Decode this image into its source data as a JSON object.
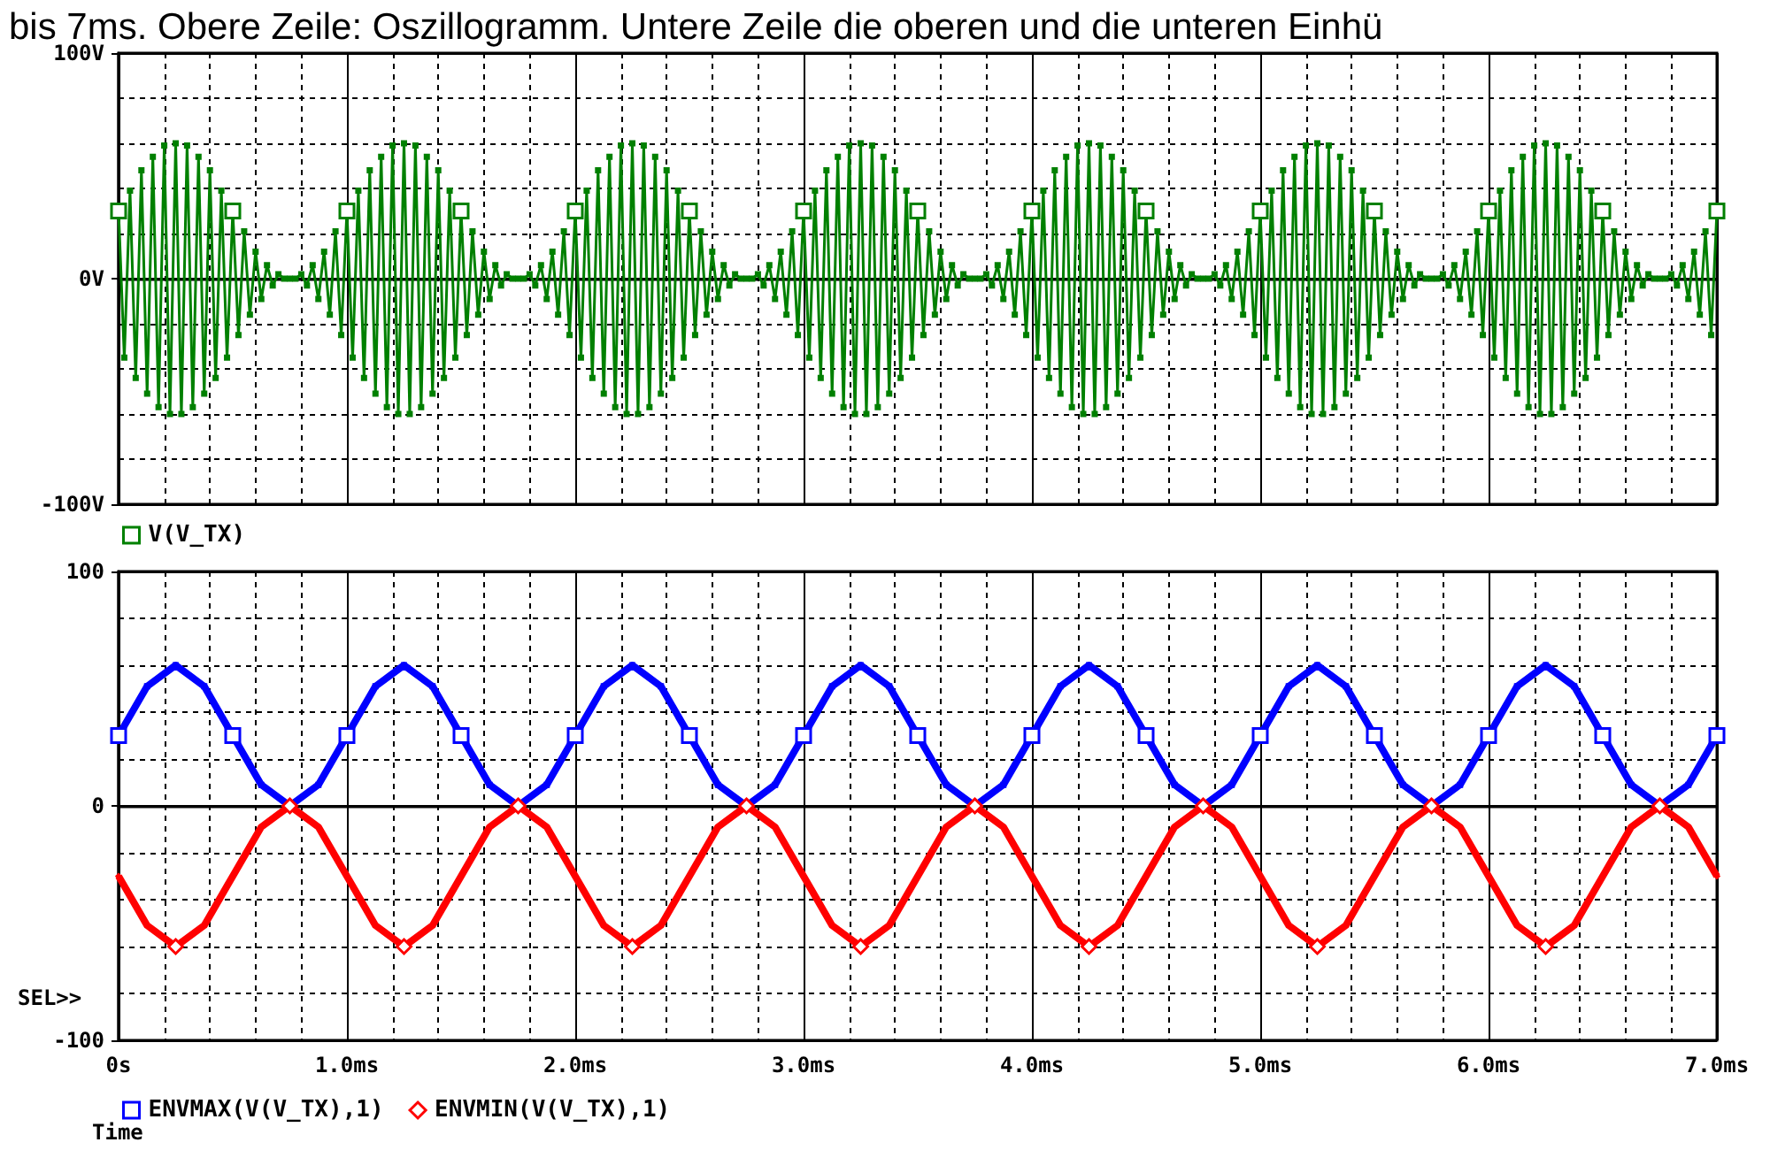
{
  "chart_data": [
    {
      "type": "line",
      "title": "bis 7ms. Obere Zeile: Oszillogramm. Untere Zeile die oberen und die unteren Einhü",
      "xlim": [
        0,
        7
      ],
      "xticks": [
        0,
        1,
        2,
        3,
        4,
        5,
        6,
        7
      ],
      "tick_labels": "y",
      "ylim": [
        -100,
        100
      ],
      "yticks": [
        {
          "value": -100,
          "label": "-100V"
        },
        {
          "value": 0,
          "label": "0V"
        },
        {
          "value": 100,
          "label": "100V"
        }
      ],
      "grid": true,
      "legend": "bottom left",
      "marker": "square",
      "series": [
        {
          "name": "V(V_TX)",
          "color": "#008000",
          "x": [
            0,
            0.025,
            0.05,
            0.075,
            0.1,
            0.125,
            0.15,
            0.175,
            0.2,
            0.225,
            0.25,
            0.275,
            0.3,
            0.325,
            0.35,
            0.375,
            0.4,
            0.425,
            0.45,
            0.475,
            0.5,
            0.525,
            0.55,
            0.575,
            0.6,
            0.625,
            0.65,
            0.675,
            0.7,
            0.725,
            0.75,
            0.775,
            0.8,
            0.825,
            0.85,
            0.875,
            0.9,
            0.925,
            0.95,
            0.975,
            1,
            1.025,
            1.05,
            1.075,
            1.1,
            1.125,
            1.15,
            1.175,
            1.2,
            1.225,
            1.25,
            1.275,
            1.3,
            1.325,
            1.35,
            1.375,
            1.4,
            1.425,
            1.45,
            1.475,
            1.5,
            1.525,
            1.55,
            1.575,
            1.6,
            1.625,
            1.65,
            1.675,
            1.7,
            1.725,
            1.75,
            1.775,
            1.8,
            1.825,
            1.85,
            1.875,
            1.9,
            1.925,
            1.95,
            1.975,
            2,
            2.025,
            2.05,
            2.075,
            2.1,
            2.125,
            2.15,
            2.175,
            2.2,
            2.225,
            2.25,
            2.275,
            2.3,
            2.325,
            2.35,
            2.375,
            2.4,
            2.425,
            2.45,
            2.475,
            2.5,
            2.525,
            2.55,
            2.575,
            2.6,
            2.625,
            2.65,
            2.675,
            2.7,
            2.725,
            2.75,
            2.775,
            2.8,
            2.825,
            2.85,
            2.875,
            2.9,
            2.925,
            2.95,
            2.975,
            3,
            3.025,
            3.05,
            3.075,
            3.1,
            3.125,
            3.15,
            3.175,
            3.2,
            3.225,
            3.25,
            3.275,
            3.3,
            3.325,
            3.35,
            3.375,
            3.4,
            3.425,
            3.45,
            3.475,
            3.5,
            3.525,
            3.55,
            3.575,
            3.6,
            3.625,
            3.65,
            3.675,
            3.7,
            3.725,
            3.75,
            3.775,
            3.8,
            3.825,
            3.85,
            3.875,
            3.9,
            3.925,
            3.95,
            3.975,
            4,
            4.025,
            4.05,
            4.075,
            4.1,
            4.125,
            4.15,
            4.175,
            4.2,
            4.225,
            4.25,
            4.275,
            4.3,
            4.325,
            4.35,
            4.375,
            4.4,
            4.425,
            4.45,
            4.475,
            4.5,
            4.525,
            4.55,
            4.575,
            4.6,
            4.625,
            4.65,
            4.675,
            4.7,
            4.725,
            4.75,
            4.775,
            4.8,
            4.825,
            4.85,
            4.875,
            4.9,
            4.925,
            4.95,
            4.975,
            5,
            5.025,
            5.05,
            5.075,
            5.1,
            5.125,
            5.15,
            5.175,
            5.2,
            5.225,
            5.25,
            5.275,
            5.3,
            5.325,
            5.35,
            5.375,
            5.4,
            5.425,
            5.45,
            5.475,
            5.5,
            5.525,
            5.55,
            5.575,
            5.6,
            5.625,
            5.65,
            5.675,
            5.7,
            5.725,
            5.75,
            5.775,
            5.8,
            5.825,
            5.85,
            5.875,
            5.9,
            5.925,
            5.95,
            5.975,
            6,
            6.025,
            6.05,
            6.075,
            6.1,
            6.125,
            6.15,
            6.175,
            6.2,
            6.225,
            6.25,
            6.275,
            6.3,
            6.325,
            6.35,
            6.375,
            6.4,
            6.425,
            6.45,
            6.475,
            6.5,
            6.525,
            6.55,
            6.575,
            6.6,
            6.625,
            6.65,
            6.675,
            6.7,
            6.725,
            6.75,
            6.775,
            6.8,
            6.825,
            6.85,
            6.875,
            6.9,
            6.925,
            6.95,
            6.975,
            7
          ],
          "values": [
            30,
            -35,
            39,
            -44,
            48,
            -51,
            54,
            -57,
            59,
            -60,
            60,
            -60,
            59,
            -57,
            54,
            -51,
            48,
            -44,
            39,
            -35,
            30,
            -25,
            21,
            -16,
            12,
            -9,
            6,
            -3,
            2,
            0,
            0,
            0,
            2,
            -3,
            6,
            -9,
            12,
            -16,
            21,
            -25,
            30,
            -35,
            39,
            -44,
            48,
            -51,
            54,
            -57,
            59,
            -60,
            60,
            -60,
            59,
            -57,
            54,
            -51,
            48,
            -44,
            39,
            -35,
            30,
            -25,
            21,
            -16,
            12,
            -9,
            6,
            -3,
            2,
            0,
            0,
            0,
            2,
            -3,
            6,
            -9,
            12,
            -16,
            21,
            -25,
            30,
            -35,
            39,
            -44,
            48,
            -51,
            54,
            -57,
            59,
            -60,
            60,
            -60,
            59,
            -57,
            54,
            -51,
            48,
            -44,
            39,
            -35,
            30,
            -25,
            21,
            -16,
            12,
            -9,
            6,
            -3,
            2,
            0,
            0,
            0,
            2,
            -3,
            6,
            -9,
            12,
            -16,
            21,
            -25,
            30,
            -35,
            39,
            -44,
            48,
            -51,
            54,
            -57,
            59,
            -60,
            60,
            -60,
            59,
            -57,
            54,
            -51,
            48,
            -44,
            39,
            -35,
            30,
            -25,
            21,
            -16,
            12,
            -9,
            6,
            -3,
            2,
            0,
            0,
            0,
            2,
            -3,
            6,
            -9,
            12,
            -16,
            21,
            -25,
            30,
            -35,
            39,
            -44,
            48,
            -51,
            54,
            -57,
            59,
            -60,
            60,
            -60,
            59,
            -57,
            54,
            -51,
            48,
            -44,
            39,
            -35,
            30,
            -25,
            21,
            -16,
            12,
            -9,
            6,
            -3,
            2,
            0,
            0,
            0,
            2,
            -3,
            6,
            -9,
            12,
            -16,
            21,
            -25,
            30,
            -35,
            39,
            -44,
            48,
            -51,
            54,
            -57,
            59,
            -60,
            60,
            -60,
            59,
            -57,
            54,
            -51,
            48,
            -44,
            39,
            -35,
            30,
            -25,
            21,
            -16,
            12,
            -9,
            6,
            -3,
            2,
            0,
            0,
            0,
            2,
            -3,
            6,
            -9,
            12,
            -16,
            21,
            -25,
            30,
            -35,
            39,
            -44,
            48,
            -51,
            54,
            -57,
            59,
            -60,
            60,
            -60,
            59,
            -57,
            54,
            -51,
            48,
            -44,
            39,
            -35,
            30,
            -25,
            21,
            -16,
            12,
            -9,
            6,
            -3,
            2,
            0,
            0,
            0,
            2,
            -3,
            6,
            -9,
            12,
            -16,
            21,
            -25,
            30
          ]
        }
      ]
    },
    {
      "type": "line",
      "xlabel": "Time",
      "annotations": [
        "SEL>>"
      ],
      "xlim": [
        0,
        7
      ],
      "xticks": [
        {
          "value": 0,
          "label": "0s"
        },
        {
          "value": 1,
          "label": "1.0ms"
        },
        {
          "value": 2,
          "label": "2.0ms"
        },
        {
          "value": 3,
          "label": "3.0ms"
        },
        {
          "value": 4,
          "label": "4.0ms"
        },
        {
          "value": 5,
          "label": "5.0ms"
        },
        {
          "value": 6,
          "label": "6.0ms"
        },
        {
          "value": 7,
          "label": "7.0ms"
        }
      ],
      "ylim": [
        -100,
        100
      ],
      "yticks": [
        -100,
        0,
        100
      ],
      "grid": true,
      "legend": "bottom left",
      "x": [
        0,
        0.125,
        0.25,
        0.375,
        0.5,
        0.625,
        0.75,
        0.875,
        1,
        1.125,
        1.25,
        1.375,
        1.5,
        1.625,
        1.75,
        1.875,
        2,
        2.125,
        2.25,
        2.375,
        2.5,
        2.625,
        2.75,
        2.875,
        3,
        3.125,
        3.25,
        3.375,
        3.5,
        3.625,
        3.75,
        3.875,
        4,
        4.125,
        4.25,
        4.375,
        4.5,
        4.625,
        4.75,
        4.875,
        5,
        5.125,
        5.25,
        5.375,
        5.5,
        5.625,
        5.75,
        5.875,
        6,
        6.125,
        6.25,
        6.375,
        6.5,
        6.625,
        6.75,
        6.875,
        7
      ],
      "series": [
        {
          "name": "ENVMAX(V(V_TX),1)",
          "color": "#0000ff",
          "marker": "square",
          "values": [
            30,
            51,
            60,
            51,
            30,
            9,
            0,
            9,
            30,
            51,
            60,
            51,
            30,
            9,
            0,
            9,
            30,
            51,
            60,
            51,
            30,
            9,
            0,
            9,
            30,
            51,
            60,
            51,
            30,
            9,
            0,
            9,
            30,
            51,
            60,
            51,
            30,
            9,
            0,
            9,
            30,
            51,
            60,
            51,
            30,
            9,
            0,
            9,
            30,
            51,
            60,
            51,
            30,
            9,
            0,
            9,
            30
          ]
        },
        {
          "name": "ENVMIN(V(V_TX),1)",
          "color": "#ff0000",
          "marker": "diamond",
          "values": [
            -30,
            -51,
            -60,
            -51,
            -30,
            -9,
            0,
            -9,
            -30,
            -51,
            -60,
            -51,
            -30,
            -9,
            0,
            -9,
            -30,
            -51,
            -60,
            -51,
            -30,
            -9,
            0,
            -9,
            -30,
            -51,
            -60,
            -51,
            -30,
            -9,
            0,
            -9,
            -30,
            -51,
            -60,
            -51,
            -30,
            -9,
            0,
            -9,
            -30,
            -51,
            -60,
            -51,
            -30,
            -9,
            0,
            -9,
            -30,
            -51,
            -60,
            -51,
            -30,
            -9,
            0,
            -9,
            -30
          ]
        }
      ]
    }
  ]
}
